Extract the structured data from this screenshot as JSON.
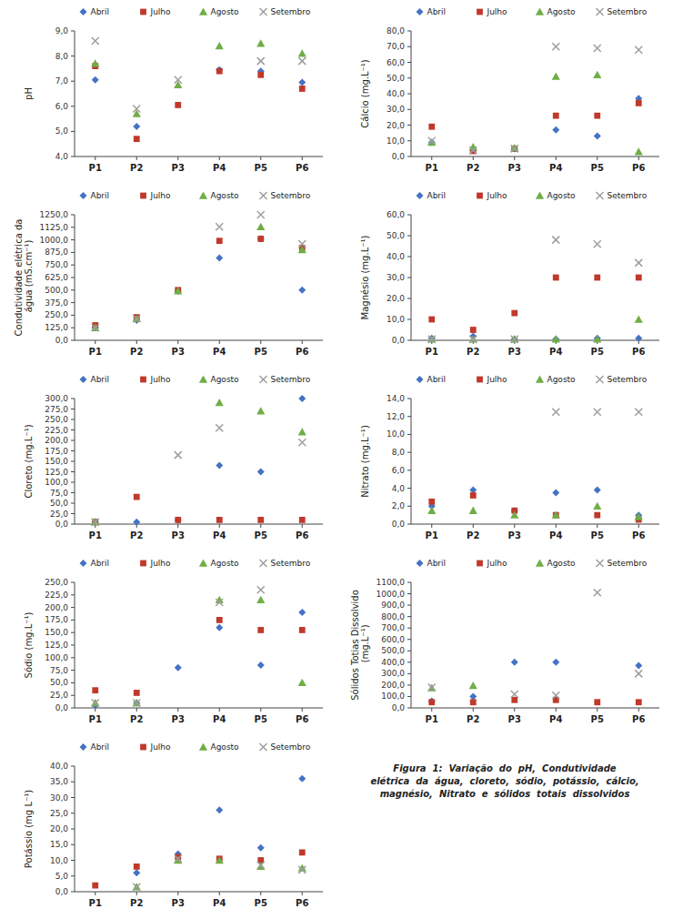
{
  "chart_data": [
    {
      "type": "scatter",
      "ylabel": "pH",
      "categories": [
        "P1",
        "P2",
        "P3",
        "P4",
        "P5",
        "P6"
      ],
      "series": [
        {
          "name": "Abril",
          "color": "#4472c4",
          "marker": "diamond",
          "values": [
            7.05,
            5.2,
            null,
            7.45,
            7.4,
            6.95
          ]
        },
        {
          "name": "Julho",
          "color": "#c0392b",
          "marker": "square",
          "values": [
            7.6,
            4.7,
            6.05,
            7.4,
            7.25,
            6.7
          ]
        },
        {
          "name": "Agosto",
          "color": "#70ad47",
          "marker": "triangle",
          "values": [
            7.7,
            5.7,
            6.85,
            8.4,
            8.5,
            8.1
          ]
        },
        {
          "name": "Setembro",
          "color": "#9e9e9e",
          "marker": "x",
          "values": [
            8.6,
            5.9,
            7.05,
            null,
            7.8,
            7.8
          ]
        }
      ],
      "ylim": [
        4.0,
        9.0
      ],
      "yticks": [
        {
          "value": 4.0,
          "label": "4,0"
        },
        {
          "value": 5.0,
          "label": "5,0"
        },
        {
          "value": 6.0,
          "label": "6,0"
        },
        {
          "value": 7.0,
          "label": "7,0"
        },
        {
          "value": 8.0,
          "label": "8,0"
        },
        {
          "value": 9.0,
          "label": "9,0"
        }
      ],
      "grid": false,
      "legend": "top"
    },
    {
      "type": "scatter",
      "ylabel": "Condutividade elétrica da\n água (mS.cm⁻¹)",
      "categories": [
        "P1",
        "P2",
        "P3",
        "P4",
        "P5",
        "P6"
      ],
      "series": [
        {
          "name": "Abril",
          "color": "#4472c4",
          "marker": "diamond",
          "values": [
            125.0,
            200.0,
            490.0,
            820.0,
            1010.0,
            500.0
          ]
        },
        {
          "name": "Julho",
          "color": "#c0392b",
          "marker": "square",
          "values": [
            150.0,
            230.0,
            500.0,
            990.0,
            1010.0,
            920.0
          ]
        },
        {
          "name": "Agosto",
          "color": "#70ad47",
          "marker": "triangle",
          "values": [
            125.0,
            215.0,
            490.0,
            null,
            1130.0,
            900.0
          ]
        },
        {
          "name": "Setembro",
          "color": "#9e9e9e",
          "marker": "x",
          "values": [
            125.0,
            215.0,
            null,
            1130.0,
            1250.0,
            960.0
          ]
        }
      ],
      "ylim": [
        0.0,
        1250.0
      ],
      "yticks": [
        {
          "value": 0.0,
          "label": "0,0"
        },
        {
          "value": 125.0,
          "label": "125,0"
        },
        {
          "value": 250.0,
          "label": "250,0"
        },
        {
          "value": 375.0,
          "label": "375,0"
        },
        {
          "value": 500.0,
          "label": "500,0"
        },
        {
          "value": 625.0,
          "label": "625,0"
        },
        {
          "value": 750.0,
          "label": "750,0"
        },
        {
          "value": 875.0,
          "label": "875,0"
        },
        {
          "value": 1000.0,
          "label": "1000,0"
        },
        {
          "value": 1125.0,
          "label": "1125,0"
        },
        {
          "value": 1250.0,
          "label": "1250,0"
        }
      ],
      "grid": false,
      "legend": "top"
    },
    {
      "type": "scatter",
      "ylabel": "Cloreto (mg.L⁻¹)",
      "categories": [
        "P1",
        "P2",
        "P3",
        "P4",
        "P5",
        "P6"
      ],
      "series": [
        {
          "name": "Abril",
          "color": "#4472c4",
          "marker": "diamond",
          "values": [
            5.0,
            5.0,
            10.0,
            140.0,
            125.0,
            300.0
          ]
        },
        {
          "name": "Julho",
          "color": "#c0392b",
          "marker": "square",
          "values": [
            5.0,
            65.0,
            10.0,
            10.0,
            10.0,
            10.0
          ]
        },
        {
          "name": "Agosto",
          "color": "#70ad47",
          "marker": "triangle",
          "values": [
            5.0,
            null,
            null,
            290.0,
            270.0,
            220.0
          ]
        },
        {
          "name": "Setembro",
          "color": "#9e9e9e",
          "marker": "x",
          "values": [
            5.0,
            null,
            165.0,
            230.0,
            null,
            195.0
          ]
        }
      ],
      "ylim": [
        0.0,
        300.0
      ],
      "yticks": [
        {
          "value": 0.0,
          "label": "0,0"
        },
        {
          "value": 25.0,
          "label": "25,0"
        },
        {
          "value": 50.0,
          "label": "50,0"
        },
        {
          "value": 75.0,
          "label": "75,0"
        },
        {
          "value": 100.0,
          "label": "100,0"
        },
        {
          "value": 125.0,
          "label": "125,0"
        },
        {
          "value": 150.0,
          "label": "150,0"
        },
        {
          "value": 175.0,
          "label": "175,0"
        },
        {
          "value": 200.0,
          "label": "200,0"
        },
        {
          "value": 225.0,
          "label": "225,0"
        },
        {
          "value": 250.0,
          "label": "250,0"
        },
        {
          "value": 275.0,
          "label": "275,0"
        },
        {
          "value": 300.0,
          "label": "300,0"
        }
      ],
      "grid": false,
      "legend": "top"
    },
    {
      "type": "scatter",
      "ylabel": "Sódio (mg.L⁻¹)",
      "categories": [
        "P1",
        "P2",
        "P3",
        "P4",
        "P5",
        "P6"
      ],
      "series": [
        {
          "name": "Abril",
          "color": "#4472c4",
          "marker": "diamond",
          "values": [
            5.0,
            10.0,
            80.0,
            160.0,
            85.0,
            190.0
          ]
        },
        {
          "name": "Julho",
          "color": "#c0392b",
          "marker": "square",
          "values": [
            35.0,
            30.0,
            null,
            175.0,
            155.0,
            155.0
          ]
        },
        {
          "name": "Agosto",
          "color": "#70ad47",
          "marker": "triangle",
          "values": [
            10.0,
            10.0,
            null,
            215.0,
            215.0,
            50.0
          ]
        },
        {
          "name": "Setembro",
          "color": "#9e9e9e",
          "marker": "x",
          "values": [
            10.0,
            10.0,
            null,
            210.0,
            235.0,
            null
          ]
        }
      ],
      "ylim": [
        0.0,
        250.0
      ],
      "yticks": [
        {
          "value": 0.0,
          "label": "0,0"
        },
        {
          "value": 25.0,
          "label": "25,0"
        },
        {
          "value": 50.0,
          "label": "50,0"
        },
        {
          "value": 75.0,
          "label": "75,0"
        },
        {
          "value": 100.0,
          "label": "100,0"
        },
        {
          "value": 125.0,
          "label": "125,0"
        },
        {
          "value": 150.0,
          "label": "150,0"
        },
        {
          "value": 175.0,
          "label": "175,0"
        },
        {
          "value": 200.0,
          "label": "200,0"
        },
        {
          "value": 225.0,
          "label": "225,0"
        },
        {
          "value": 250.0,
          "label": "250,0"
        }
      ],
      "grid": false,
      "legend": "top"
    },
    {
      "type": "scatter",
      "ylabel": "Potássio (mg L⁻¹)",
      "categories": [
        "P1",
        "P2",
        "P3",
        "P4",
        "P5",
        "P6"
      ],
      "series": [
        {
          "name": "Abril",
          "color": "#4472c4",
          "marker": "diamond",
          "values": [
            null,
            6.0,
            12.0,
            26.0,
            14.0,
            36.0
          ]
        },
        {
          "name": "Julho",
          "color": "#c0392b",
          "marker": "square",
          "values": [
            2.0,
            8.0,
            11.0,
            10.5,
            10.0,
            12.5
          ]
        },
        {
          "name": "Agosto",
          "color": "#70ad47",
          "marker": "triangle",
          "values": [
            null,
            1.5,
            10.0,
            10.0,
            8.0,
            7.5
          ]
        },
        {
          "name": "Setembro",
          "color": "#9e9e9e",
          "marker": "x",
          "values": [
            null,
            1.5,
            10.5,
            null,
            8.5,
            7.0
          ]
        }
      ],
      "ylim": [
        0.0,
        40.0
      ],
      "yticks": [
        {
          "value": 0.0,
          "label": "0,0"
        },
        {
          "value": 5.0,
          "label": "5,0"
        },
        {
          "value": 10.0,
          "label": "10,0"
        },
        {
          "value": 15.0,
          "label": "15,0"
        },
        {
          "value": 20.0,
          "label": "20,0"
        },
        {
          "value": 25.0,
          "label": "25,0"
        },
        {
          "value": 30.0,
          "label": "30,0"
        },
        {
          "value": 35.0,
          "label": "35,0"
        },
        {
          "value": 40.0,
          "label": "40,0"
        }
      ],
      "grid": false,
      "legend": "top"
    },
    {
      "type": "scatter",
      "ylabel": "Cálcio (mg.L⁻¹)",
      "categories": [
        "P1",
        "P2",
        "P3",
        "P4",
        "P5",
        "P6"
      ],
      "series": [
        {
          "name": "Abril",
          "color": "#4472c4",
          "marker": "diamond",
          "values": [
            9.0,
            4.0,
            5.0,
            17.0,
            13.0,
            37.0
          ]
        },
        {
          "name": "Julho",
          "color": "#c0392b",
          "marker": "square",
          "values": [
            19.0,
            3.5,
            5.0,
            26.0,
            26.0,
            34.0
          ]
        },
        {
          "name": "Agosto",
          "color": "#70ad47",
          "marker": "triangle",
          "values": [
            9.0,
            6.0,
            5.5,
            51.0,
            52.0,
            3.0
          ]
        },
        {
          "name": "Setembro",
          "color": "#9e9e9e",
          "marker": "x",
          "values": [
            10.0,
            4.0,
            5.0,
            70.0,
            69.0,
            68.0
          ]
        }
      ],
      "ylim": [
        0.0,
        80.0
      ],
      "yticks": [
        {
          "value": 0.0,
          "label": "0,0"
        },
        {
          "value": 10.0,
          "label": "10,0"
        },
        {
          "value": 20.0,
          "label": "20,0"
        },
        {
          "value": 30.0,
          "label": "30,0"
        },
        {
          "value": 40.0,
          "label": "40,0"
        },
        {
          "value": 50.0,
          "label": "50,0"
        },
        {
          "value": 60.0,
          "label": "60,0"
        },
        {
          "value": 70.0,
          "label": "70,0"
        },
        {
          "value": 80.0,
          "label": "80,0"
        }
      ],
      "grid": false,
      "legend": "top"
    },
    {
      "type": "scatter",
      "ylabel": "Magnésio (mg.L⁻¹)",
      "categories": [
        "P1",
        "P2",
        "P3",
        "P4",
        "P5",
        "P6"
      ],
      "series": [
        {
          "name": "Abril",
          "color": "#4472c4",
          "marker": "diamond",
          "values": [
            1.0,
            2.0,
            0.5,
            0.5,
            1.0,
            1.0
          ]
        },
        {
          "name": "Julho",
          "color": "#c0392b",
          "marker": "square",
          "values": [
            10.0,
            5.0,
            13.0,
            30.0,
            30.0,
            30.0
          ]
        },
        {
          "name": "Agosto",
          "color": "#70ad47",
          "marker": "triangle",
          "values": [
            0.5,
            0.5,
            0.5,
            0.5,
            0.5,
            10.0
          ]
        },
        {
          "name": "Setembro",
          "color": "#9e9e9e",
          "marker": "x",
          "values": [
            0.5,
            0.5,
            0.5,
            48.0,
            46.0,
            37.0
          ]
        }
      ],
      "ylim": [
        0.0,
        60.0
      ],
      "yticks": [
        {
          "value": 0.0,
          "label": "0,0"
        },
        {
          "value": 10.0,
          "label": "10,0"
        },
        {
          "value": 20.0,
          "label": "20,0"
        },
        {
          "value": 30.0,
          "label": "30,0"
        },
        {
          "value": 40.0,
          "label": "40,0"
        },
        {
          "value": 50.0,
          "label": "50,0"
        },
        {
          "value": 60.0,
          "label": "60,0"
        }
      ],
      "grid": false,
      "legend": "top"
    },
    {
      "type": "scatter",
      "ylabel": "Nitrato (mg.L⁻¹)",
      "categories": [
        "P1",
        "P2",
        "P3",
        "P4",
        "P5",
        "P6"
      ],
      "series": [
        {
          "name": "Abril",
          "color": "#4472c4",
          "marker": "diamond",
          "values": [
            2.0,
            3.8,
            1.5,
            3.5,
            3.8,
            1.0
          ]
        },
        {
          "name": "Julho",
          "color": "#c0392b",
          "marker": "square",
          "values": [
            2.5,
            3.2,
            1.5,
            1.0,
            1.0,
            0.5
          ]
        },
        {
          "name": "Agosto",
          "color": "#70ad47",
          "marker": "triangle",
          "values": [
            1.5,
            1.5,
            1.0,
            1.0,
            2.0,
            0.8
          ]
        },
        {
          "name": "Setembro",
          "color": "#9e9e9e",
          "marker": "x",
          "values": [
            null,
            null,
            null,
            12.5,
            12.5,
            12.5
          ]
        }
      ],
      "ylim": [
        0.0,
        14.0
      ],
      "yticks": [
        {
          "value": 0.0,
          "label": "0,0"
        },
        {
          "value": 2.0,
          "label": "2,0"
        },
        {
          "value": 4.0,
          "label": "4,0"
        },
        {
          "value": 6.0,
          "label": "6,0"
        },
        {
          "value": 8.0,
          "label": "8,0"
        },
        {
          "value": 10.0,
          "label": "10,0"
        },
        {
          "value": 12.0,
          "label": "12,0"
        },
        {
          "value": 14.0,
          "label": "14,0"
        }
      ],
      "grid": false,
      "legend": "top"
    },
    {
      "type": "scatter",
      "ylabel": "Sólidos Totias Dissolvido\n (mg.L⁻¹)",
      "categories": [
        "P1",
        "P2",
        "P3",
        "P4",
        "P5",
        "P6"
      ],
      "series": [
        {
          "name": "Abril",
          "color": "#4472c4",
          "marker": "diamond",
          "values": [
            60.0,
            100.0,
            400.0,
            400.0,
            null,
            370.0
          ]
        },
        {
          "name": "Julho",
          "color": "#c0392b",
          "marker": "square",
          "values": [
            50.0,
            50.0,
            70.0,
            70.0,
            50.0,
            50.0
          ]
        },
        {
          "name": "Agosto",
          "color": "#70ad47",
          "marker": "triangle",
          "values": [
            175.0,
            195.0,
            null,
            null,
            null,
            null
          ]
        },
        {
          "name": "Setembro",
          "color": "#9e9e9e",
          "marker": "x",
          "values": [
            180.0,
            null,
            120.0,
            110.0,
            1010.0,
            300.0
          ]
        }
      ],
      "ylim": [
        0.0,
        1100.0
      ],
      "yticks": [
        {
          "value": 0.0,
          "label": "0,0"
        },
        {
          "value": 100.0,
          "label": "100,0"
        },
        {
          "value": 200.0,
          "label": "200,0"
        },
        {
          "value": 300.0,
          "label": "300,0"
        },
        {
          "value": 400.0,
          "label": "400,0"
        },
        {
          "value": 500.0,
          "label": "500,0"
        },
        {
          "value": 600.0,
          "label": "600,0"
        },
        {
          "value": 700.0,
          "label": "700,0"
        },
        {
          "value": 800.0,
          "label": "800,0"
        },
        {
          "value": 900.0,
          "label": "900,0"
        },
        {
          "value": 1000.0,
          "label": "1000,0"
        },
        {
          "value": 1100.0,
          "label": "1100,0"
        }
      ],
      "grid": false,
      "legend": "top"
    }
  ],
  "caption": "Figura  1:  Variação  do  pH,  Condutividade\nelétrica  da  água,  cloreto,  sódio,  potássio,  cálcio,\nmagnésio,  Nitrato  e  sólidos  totais  dissolvidos"
}
